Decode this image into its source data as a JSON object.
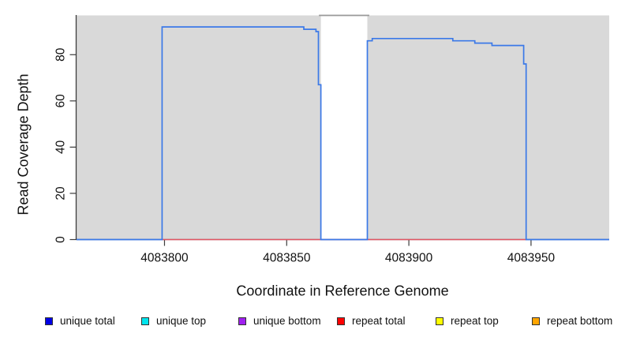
{
  "chart_data": {
    "type": "line",
    "title": "",
    "xlabel": "Coordinate in Reference Genome",
    "ylabel": "Read Coverage Depth",
    "xlim": [
      4083764,
      4083982
    ],
    "ylim": [
      0,
      97
    ],
    "xticks": [
      4083800,
      4083850,
      4083900,
      4083950
    ],
    "yticks": [
      0,
      20,
      40,
      60,
      80
    ],
    "grid": false,
    "legend_position": "bottom",
    "plot_bg_color": "#d9d9d9",
    "axis_color": "#3c3c3c",
    "gap_band": {
      "x0": 4083864,
      "x1": 4083883,
      "fill": "#ffffff",
      "top_line_color": "#999999"
    },
    "series": [
      {
        "name": "unique total",
        "swatch_color": "#0000e6",
        "line_color": "#3b79e8",
        "points": [
          [
            4083764,
            0
          ],
          [
            4083799,
            0
          ],
          [
            4083799,
            92
          ],
          [
            4083857,
            92
          ],
          [
            4083857,
            91
          ],
          [
            4083862,
            91
          ],
          [
            4083862,
            90
          ],
          [
            4083863,
            90
          ],
          [
            4083863,
            67
          ],
          [
            4083864,
            67
          ],
          [
            4083864,
            0
          ],
          [
            4083883,
            0
          ],
          [
            4083883,
            86
          ],
          [
            4083885,
            86
          ],
          [
            4083885,
            87
          ],
          [
            4083918,
            87
          ],
          [
            4083918,
            86
          ],
          [
            4083927,
            86
          ],
          [
            4083927,
            85
          ],
          [
            4083934,
            85
          ],
          [
            4083934,
            84
          ],
          [
            4083947,
            84
          ],
          [
            4083947,
            76
          ],
          [
            4083948,
            76
          ],
          [
            4083948,
            0
          ],
          [
            4083982,
            0
          ]
        ]
      },
      {
        "name": "unique top",
        "swatch_color": "#00e5ee",
        "line_color": "#00e5ee",
        "points": []
      },
      {
        "name": "unique bottom",
        "swatch_color": "#a020f0",
        "line_color": "#a020f0",
        "points": []
      },
      {
        "name": "repeat total",
        "swatch_color": "#ff0000",
        "line_color": "#e25563",
        "points": [
          [
            4083799,
            0
          ],
          [
            4083948,
            0
          ]
        ]
      },
      {
        "name": "repeat top",
        "swatch_color": "#ffff00",
        "line_color": "#ffff00",
        "points": []
      },
      {
        "name": "repeat bottom",
        "swatch_color": "#ffa500",
        "line_color": "#ffa500",
        "points": []
      }
    ]
  }
}
